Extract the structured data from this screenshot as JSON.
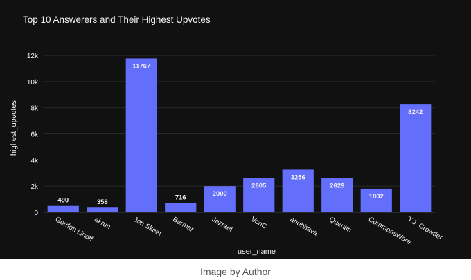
{
  "caption": "Image by Author",
  "colors": {
    "bar": "#636efa",
    "background": "#111111",
    "grid": "#2a2a2a",
    "text": "#f2f2f2",
    "caption": "#555555"
  },
  "chart_data": {
    "type": "bar",
    "title": "Top 10 Answerers and Their Highest Upvotes",
    "xlabel": "user_name",
    "ylabel": "highest_upvotes",
    "categories": [
      "Gordon Linoff",
      "akrun",
      "Jon Skeet",
      "Barmar",
      "Jezrael",
      "VonC",
      "anubhava",
      "Quentin",
      "CommonsWare",
      "T.J. Crowder"
    ],
    "values": [
      490,
      358,
      11767,
      716,
      2000,
      2605,
      3256,
      2629,
      1802,
      8242
    ],
    "data_labels": [
      "490",
      "358",
      "11767",
      "716",
      "2000",
      "2605",
      "3256",
      "2629",
      "1802",
      "8242"
    ],
    "ylim": [
      0,
      12900
    ],
    "yticks": [
      0,
      2000,
      4000,
      6000,
      8000,
      10000,
      12000
    ],
    "ytick_labels": [
      "0",
      "2k",
      "4k",
      "6k",
      "8k",
      "10k",
      "12k"
    ],
    "grid": true,
    "legend": "none"
  }
}
